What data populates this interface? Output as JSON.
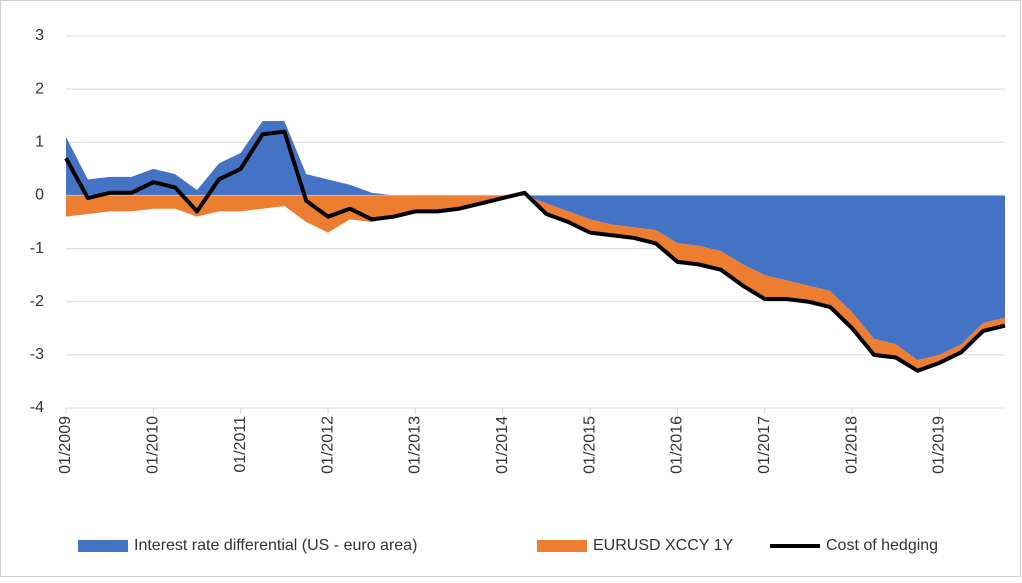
{
  "chart_data": {
    "type": "area",
    "x": [
      2009,
      2009.25,
      2009.5,
      2009.75,
      2010,
      2010.25,
      2010.5,
      2010.75,
      2011,
      2011.25,
      2011.5,
      2011.75,
      2012,
      2012.25,
      2012.5,
      2012.75,
      2013,
      2013.25,
      2013.5,
      2013.75,
      2014,
      2014.25,
      2014.5,
      2014.75,
      2015,
      2015.25,
      2015.5,
      2015.75,
      2016,
      2016.25,
      2016.5,
      2016.75,
      2017,
      2017.25,
      2017.5,
      2017.75,
      2018,
      2018.25,
      2018.5,
      2018.75,
      2019,
      2019.25,
      2019.5,
      2019.75
    ],
    "series": [
      {
        "name": "Interest rate differential (US - euro area)",
        "color": "#4472c4",
        "kind": "area",
        "values": [
          1.1,
          0.3,
          0.35,
          0.35,
          0.5,
          0.4,
          0.1,
          0.6,
          0.8,
          1.4,
          1.4,
          0.4,
          0.3,
          0.2,
          0.05,
          0,
          0,
          0,
          0,
          0,
          0,
          0,
          -0.15,
          -0.3,
          -0.45,
          -0.55,
          -0.6,
          -0.65,
          -0.9,
          -0.95,
          -1.05,
          -1.3,
          -1.5,
          -1.6,
          -1.7,
          -1.8,
          -2.2,
          -2.7,
          -2.8,
          -3.1,
          -3,
          -2.8,
          -2.4,
          -2.3
        ]
      },
      {
        "name": "EURUSD XCCY 1Y",
        "color": "#ed7d31",
        "kind": "area",
        "values": [
          -0.4,
          -0.35,
          -0.3,
          -0.3,
          -0.25,
          -0.25,
          -0.4,
          -0.3,
          -0.3,
          -0.25,
          -0.2,
          -0.5,
          -0.7,
          -0.45,
          -0.5,
          -0.4,
          -0.3,
          -0.3,
          -0.25,
          -0.15,
          -0.05,
          0.05,
          -0.2,
          -0.2,
          -0.25,
          -0.2,
          -0.2,
          -0.25,
          -0.35,
          -0.35,
          -0.35,
          -0.4,
          -0.45,
          -0.35,
          -0.3,
          -0.3,
          -0.3,
          -0.3,
          -0.25,
          -0.2,
          -0.15,
          -0.15,
          -0.15,
          -0.15
        ]
      },
      {
        "name": "Cost of hedging",
        "color": "#000000",
        "kind": "line",
        "values": [
          0.7,
          -0.05,
          0.05,
          0.05,
          0.25,
          0.15,
          -0.3,
          0.3,
          0.5,
          1.15,
          1.2,
          -0.1,
          -0.4,
          -0.25,
          -0.45,
          -0.4,
          -0.3,
          -0.3,
          -0.25,
          -0.15,
          -0.05,
          0.05,
          -0.35,
          -0.5,
          -0.7,
          -0.75,
          -0.8,
          -0.9,
          -1.25,
          -1.3,
          -1.4,
          -1.7,
          -1.95,
          -1.95,
          -2,
          -2.1,
          -2.5,
          -3,
          -3.05,
          -3.3,
          -3.15,
          -2.95,
          -2.55,
          -2.45
        ]
      }
    ],
    "xlim": [
      2009,
      2019.75
    ],
    "xticks": [
      {
        "value": 2009,
        "label": "01/2009"
      },
      {
        "value": 2010,
        "label": "01/2010"
      },
      {
        "value": 2011,
        "label": "01/2011"
      },
      {
        "value": 2012,
        "label": "01/2012"
      },
      {
        "value": 2013,
        "label": "01/2013"
      },
      {
        "value": 2014,
        "label": "01/2014"
      },
      {
        "value": 2015,
        "label": "01/2015"
      },
      {
        "value": 2016,
        "label": "01/2016"
      },
      {
        "value": 2017,
        "label": "01/2017"
      },
      {
        "value": 2018,
        "label": "01/2018"
      },
      {
        "value": 2019,
        "label": "01/2019"
      }
    ],
    "ylim": [
      -4,
      3
    ],
    "yticks": [
      -4,
      -3,
      -2,
      -1,
      0,
      1,
      2,
      3
    ],
    "grid": true,
    "legend": "bottom"
  }
}
